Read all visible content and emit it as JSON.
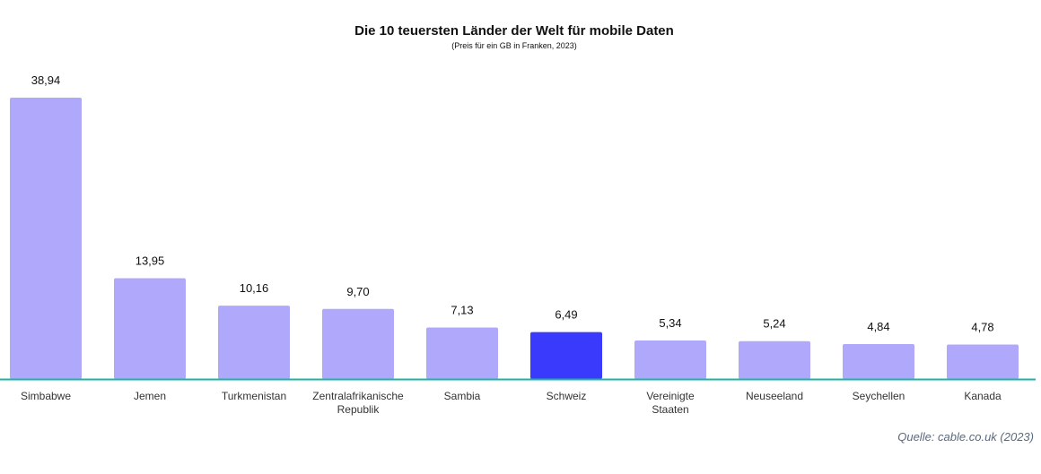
{
  "chart_data": {
    "type": "bar",
    "title": "Die 10 teuersten Länder der Welt für mobile Daten",
    "subtitle": "(Preis für ein GB in Franken, 2023)",
    "categories": [
      [
        "Simbabwe"
      ],
      [
        "Jemen"
      ],
      [
        "Turkmenistan"
      ],
      [
        "Zentralafrikanische",
        "Republik"
      ],
      [
        "Sambia"
      ],
      [
        "Schweiz"
      ],
      [
        "Vereinigte",
        "Staaten"
      ],
      [
        "Neuseeland"
      ],
      [
        "Seychellen"
      ],
      [
        "Kanada"
      ]
    ],
    "values": [
      38.94,
      13.95,
      10.16,
      9.7,
      7.13,
      6.49,
      5.34,
      5.24,
      4.84,
      4.78
    ],
    "value_labels": [
      "38,94",
      "13,95",
      "10,16",
      "9,70",
      "7,13",
      "6,49",
      "5,34",
      "5,24",
      "4,84",
      "4,78"
    ],
    "highlight_category": "Schweiz",
    "ylim": [
      0,
      38.94
    ],
    "grid": false,
    "xlabel": "",
    "ylabel": "",
    "colors": {
      "bar": "#b0a8fb",
      "highlight": "#3a3afc",
      "baseline": "#1ab5a3"
    }
  },
  "source": "Quelle: cable.co.uk (2023)"
}
